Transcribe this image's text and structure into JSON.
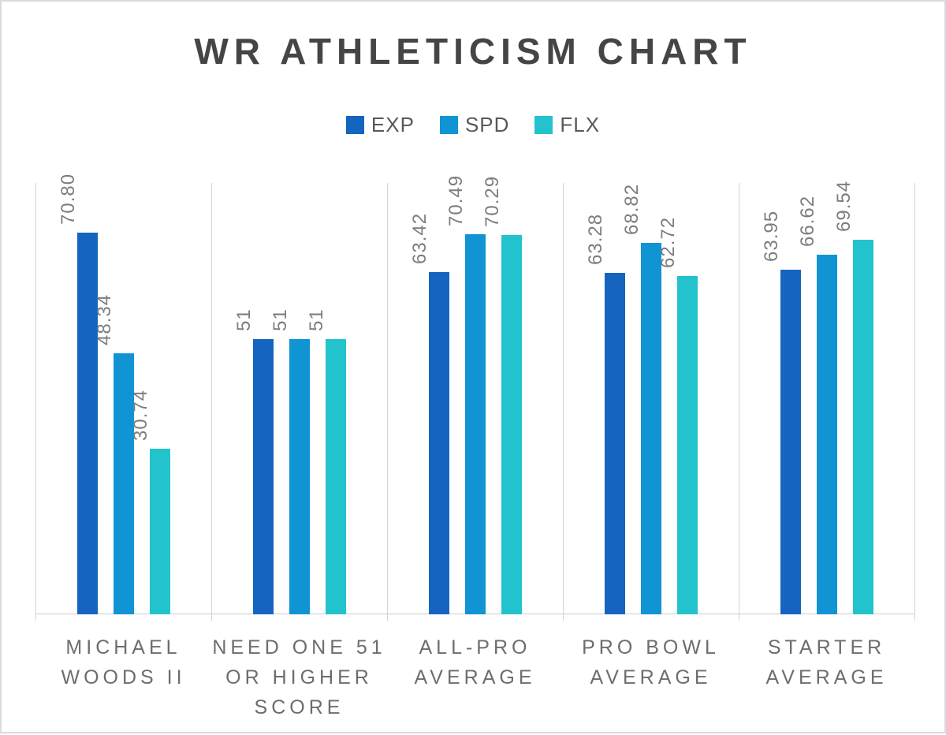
{
  "page": {
    "background": "#ffffff",
    "border_color": "#d7dbdf"
  },
  "chart_data": {
    "type": "bar",
    "title": "WR ATHLETICISM CHART",
    "title_color": "#454545",
    "legend_position": "top",
    "legend_text_color": "#595959",
    "grid": "vertical light-gray category separator lines, no horizontal gridlines, no y-axis labels",
    "axis_color": "#cccccc",
    "value_label_color": "#7d7d7d",
    "category_label_color": "#6d6d6d",
    "value_labels_rotated_90deg": true,
    "ylim": [
      0,
      80
    ],
    "categories": [
      {
        "label": "MICHAEL WOODS II",
        "lines": [
          "MICHAEL",
          "WOODS II"
        ]
      },
      {
        "label": "NEED ONE 51 OR HIGHER SCORE",
        "lines": [
          "NEED ONE 51",
          "OR HIGHER",
          "SCORE"
        ]
      },
      {
        "label": "ALL-PRO AVERAGE",
        "lines": [
          "ALL-PRO",
          "AVERAGE"
        ]
      },
      {
        "label": "PRO BOWL AVERAGE",
        "lines": [
          "PRO BOWL",
          "AVERAGE"
        ]
      },
      {
        "label": "STARTER AVERAGE",
        "lines": [
          "STARTER",
          "AVERAGE"
        ]
      }
    ],
    "series": [
      {
        "name": "EXP",
        "color": "#1565C0",
        "values": [
          70.8,
          51,
          63.42,
          63.28,
          63.95
        ],
        "value_labels": [
          "70.80",
          "51",
          "63.42",
          "63.28",
          "63.95"
        ]
      },
      {
        "name": "SPD",
        "color": "#1094D4",
        "values": [
          48.34,
          51,
          70.49,
          68.82,
          66.62
        ],
        "value_labels": [
          "48.34",
          "51",
          "70.49",
          "68.82",
          "66.62"
        ]
      },
      {
        "name": "FLX",
        "color": "#22C3CD",
        "values": [
          30.74,
          51,
          70.29,
          62.72,
          69.54
        ],
        "value_labels": [
          "30.74",
          "51",
          "70.29",
          "62.72",
          "69.54"
        ]
      }
    ]
  }
}
